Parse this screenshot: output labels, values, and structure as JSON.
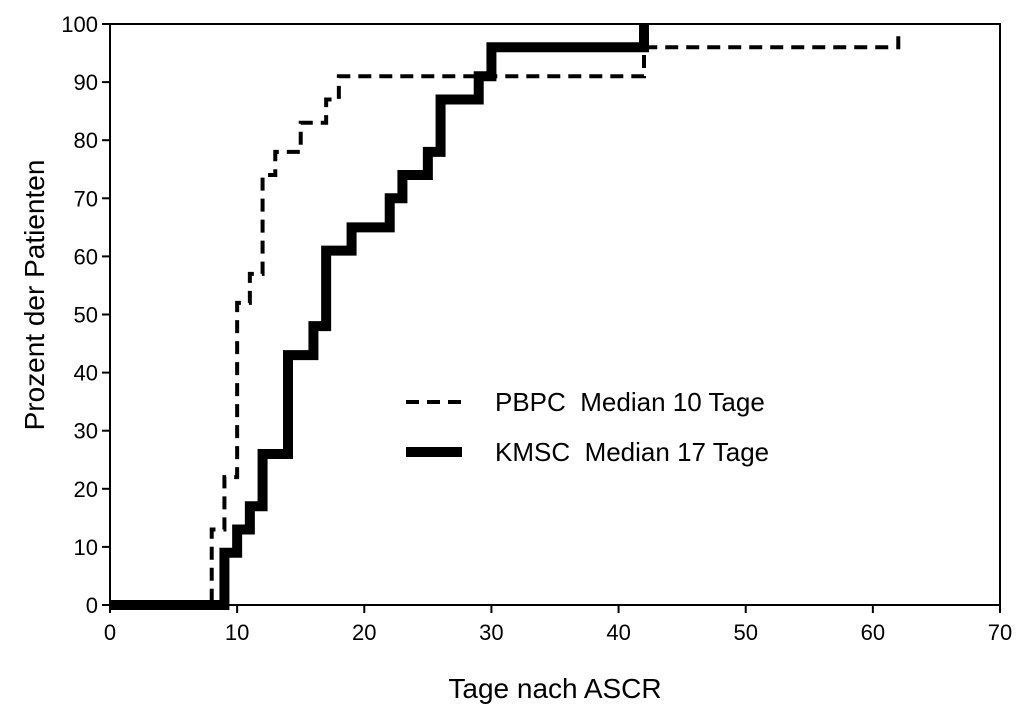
{
  "chart_data": {
    "type": "line",
    "step": true,
    "title": "",
    "xlabel": "Tage nach ASCR",
    "ylabel": "Prozent der Patienten",
    "xlim": [
      0,
      70
    ],
    "ylim": [
      0,
      100
    ],
    "x_ticks": [
      0,
      10,
      20,
      30,
      40,
      50,
      60,
      70
    ],
    "y_ticks": [
      0,
      10,
      20,
      30,
      40,
      50,
      60,
      70,
      80,
      90,
      100
    ],
    "grid": false,
    "legend_position": "center",
    "series": [
      {
        "name": "PBPC  Median 10 Tage",
        "line_style": "dashed",
        "color": "#000000",
        "x": [
          0,
          8,
          9,
          10,
          11,
          12,
          13,
          15,
          17,
          18,
          42,
          62
        ],
        "y": [
          0,
          13,
          22,
          52,
          57,
          74,
          78,
          83,
          87,
          91,
          96,
          98
        ]
      },
      {
        "name": "KMSC  Median 17 Tage",
        "line_style": "solid-thick",
        "color": "#000000",
        "x": [
          0,
          9,
          10,
          11,
          12,
          14,
          16,
          17,
          19,
          22,
          23,
          25,
          26,
          29,
          30,
          42
        ],
        "y": [
          0,
          9,
          13,
          17,
          26,
          43,
          48,
          61,
          65,
          70,
          74,
          78,
          87,
          91,
          96,
          100
        ]
      }
    ]
  }
}
